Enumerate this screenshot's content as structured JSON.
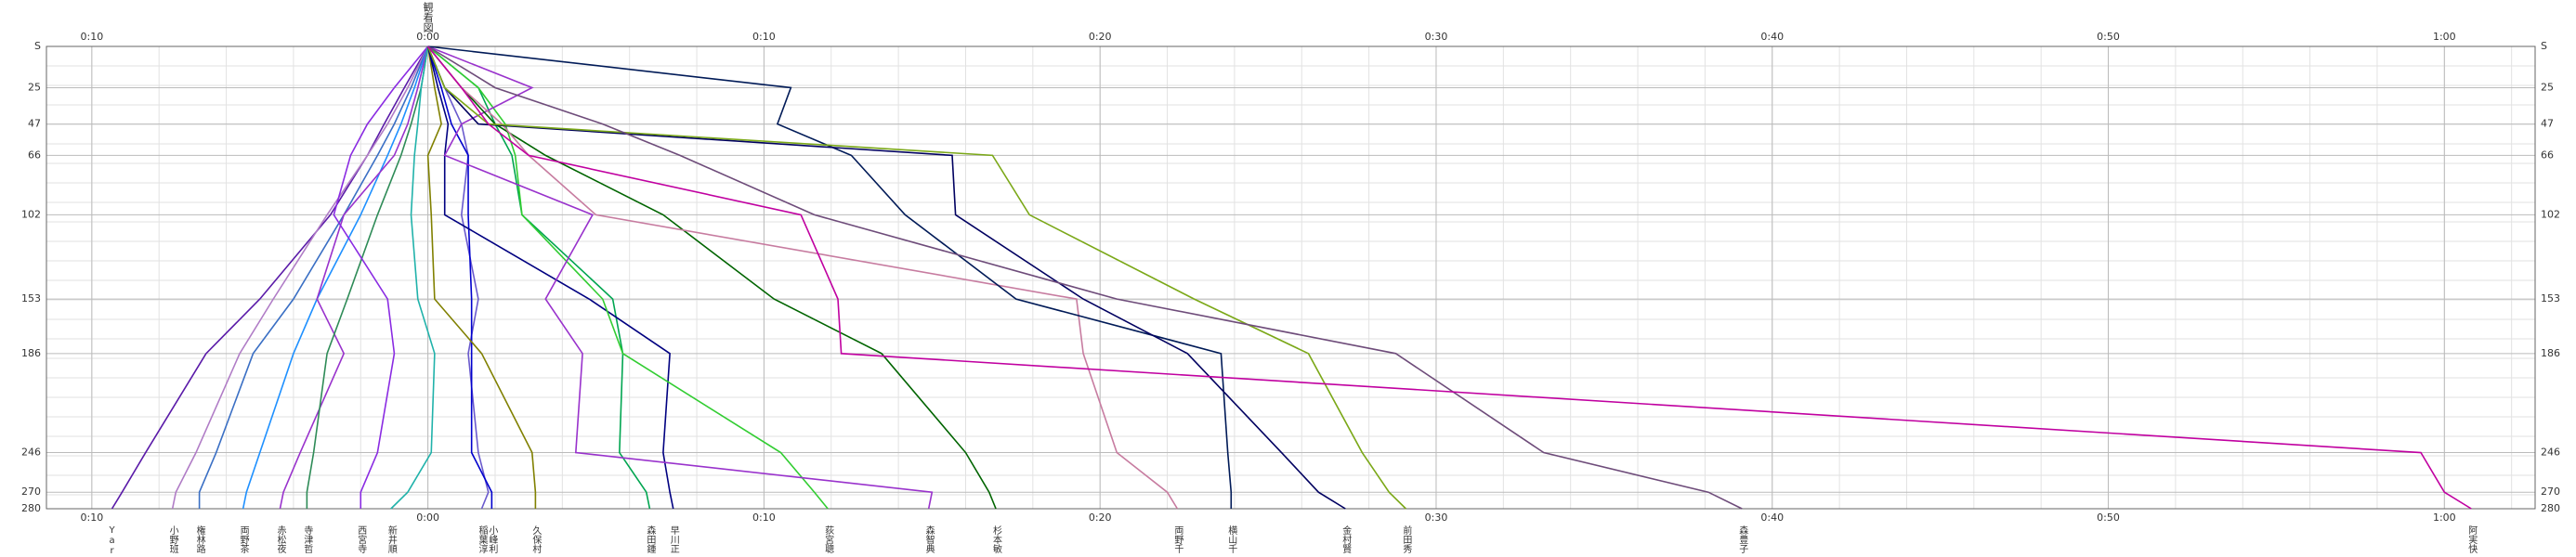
{
  "chart_data": {
    "type": "line",
    "title": "観看図",
    "xlim": [
      -11.35,
      62.7
    ],
    "xticks": [
      {
        "value": -10,
        "label": "0:10"
      },
      {
        "value": 0,
        "label": "0:00"
      },
      {
        "value": 10,
        "label": "0:10"
      },
      {
        "value": 20,
        "label": "0:20"
      },
      {
        "value": 30,
        "label": "0:30"
      },
      {
        "value": 40,
        "label": "0:40"
      },
      {
        "value": 50,
        "label": "0:50"
      },
      {
        "value": 60,
        "label": "1:00"
      }
    ],
    "ylim": [
      0,
      280
    ],
    "y": [
      0,
      25,
      47,
      66,
      102,
      153,
      186,
      246,
      270,
      280
    ],
    "yticks": [
      {
        "value": 0,
        "label": "S"
      },
      25,
      47,
      66,
      102,
      153,
      186,
      246,
      270,
      280
    ],
    "grid": true,
    "series": [
      {
        "name": "Yar",
        "color": "#5a1aa8",
        "values": [
          0,
          -0.7,
          -1.3,
          -1.8,
          -2.9,
          -5.0,
          -6.6,
          -8.4,
          -9.1,
          -9.4
        ]
      },
      {
        "name": "小野班",
        "color": "#b07cc6",
        "values": [
          0,
          -0.6,
          -1.2,
          -1.8,
          -3.0,
          -4.6,
          -5.6,
          -6.9,
          -7.5,
          -7.6
        ]
      },
      {
        "name": "権林路",
        "color": "#3a6fc4",
        "values": [
          0,
          -0.5,
          -1.0,
          -1.5,
          -2.5,
          -4.0,
          -5.2,
          -6.3,
          -6.8,
          -6.8
        ]
      },
      {
        "name": "両野茶",
        "color": "#1e90ff",
        "values": [
          0,
          -0.4,
          -0.8,
          -1.2,
          -2.0,
          -3.3,
          -4.0,
          -5.0,
          -5.4,
          -5.5
        ]
      },
      {
        "name": "赤松夜",
        "color": "#9932cc",
        "values": [
          0,
          -0.3,
          -0.6,
          -1.0,
          -2.5,
          -3.3,
          -2.5,
          -3.8,
          -4.3,
          -4.4
        ]
      },
      {
        "name": "寺津哲",
        "color": "#2e8b57",
        "values": [
          0,
          -0.2,
          -0.5,
          -0.8,
          -1.5,
          -2.4,
          -3.0,
          -3.4,
          -3.6,
          -3.6
        ]
      },
      {
        "name": "西宮寺",
        "color": "#8a2be2",
        "values": [
          0,
          -1.0,
          -1.8,
          -2.3,
          -2.8,
          -1.2,
          -1.0,
          -1.5,
          -2.0,
          -2.0
        ]
      },
      {
        "name": "新井順",
        "color": "#20b2aa",
        "values": [
          0,
          -0.2,
          -0.3,
          -0.4,
          -0.5,
          -0.3,
          0.2,
          0.1,
          -0.6,
          -1.1
        ]
      },
      {
        "name": "稲葉淳",
        "color": "#6a5acd",
        "values": [
          0,
          0.5,
          1.0,
          1.2,
          1.0,
          1.5,
          1.2,
          1.5,
          1.8,
          1.6
        ]
      },
      {
        "name": "小峰利",
        "color": "#0000cd",
        "values": [
          0,
          0.4,
          0.7,
          1.2,
          1.2,
          1.3,
          1.3,
          1.3,
          1.9,
          1.9
        ]
      },
      {
        "name": "久保村",
        "color": "#808000",
        "values": [
          0,
          0.2,
          0.4,
          0.0,
          0.1,
          0.2,
          1.6,
          3.1,
          3.2,
          3.2
        ]
      },
      {
        "name": "森田鍾",
        "color": "#00a550",
        "values": [
          0,
          1.5,
          2.0,
          2.5,
          2.8,
          5.5,
          5.8,
          5.7,
          6.5,
          6.6
        ]
      },
      {
        "name": "早川正",
        "color": "#000080",
        "values": [
          0,
          0.3,
          0.6,
          0.5,
          0.5,
          4.8,
          7.2,
          7.0,
          7.2,
          7.3
        ]
      },
      {
        "name": "荻宮聰",
        "color": "#32cd32",
        "values": [
          0,
          1.5,
          2.3,
          2.6,
          2.8,
          5.2,
          5.8,
          10.5,
          11.5,
          11.9
        ]
      },
      {
        "name": "森智典",
        "color": "#9932cc",
        "values": [
          0,
          3.1,
          1.0,
          0.5,
          4.9,
          3.5,
          4.6,
          4.4,
          15.0,
          14.9
        ]
      },
      {
        "name": "杉本敏",
        "color": "#006400",
        "values": [
          0,
          1.0,
          2.0,
          3.5,
          7.0,
          10.3,
          13.5,
          16.0,
          16.7,
          16.9
        ]
      },
      {
        "name": "両野千",
        "color": "#c77ca0",
        "values": [
          0,
          1.0,
          2.2,
          3.0,
          5.0,
          19.3,
          19.5,
          20.5,
          22.0,
          22.3
        ]
      },
      {
        "name": "横山千",
        "color": "#001a57",
        "values": [
          0,
          10.8,
          10.4,
          12.6,
          14.2,
          17.5,
          23.6,
          23.8,
          23.9,
          23.9
        ]
      },
      {
        "name": "金村賢",
        "color": "#000060",
        "values": [
          0,
          0.5,
          1.5,
          15.6,
          15.7,
          19.5,
          22.6,
          25.4,
          26.5,
          27.3
        ]
      },
      {
        "name": "前田秀",
        "color": "#7ba818",
        "values": [
          0,
          0.5,
          1.8,
          16.8,
          17.9,
          22.8,
          26.2,
          27.8,
          28.6,
          29.1
        ]
      },
      {
        "name": "森豊子",
        "color": "#6e4c7a",
        "values": [
          0,
          2.0,
          5.2,
          7.5,
          11.5,
          20.5,
          28.8,
          33.2,
          38.1,
          39.1
        ]
      },
      {
        "name": "阿実快",
        "color": "#c000a0",
        "values": [
          0,
          1.0,
          1.8,
          3.0,
          11.1,
          12.2,
          12.3,
          59.3,
          60.0,
          60.8
        ]
      }
    ]
  }
}
